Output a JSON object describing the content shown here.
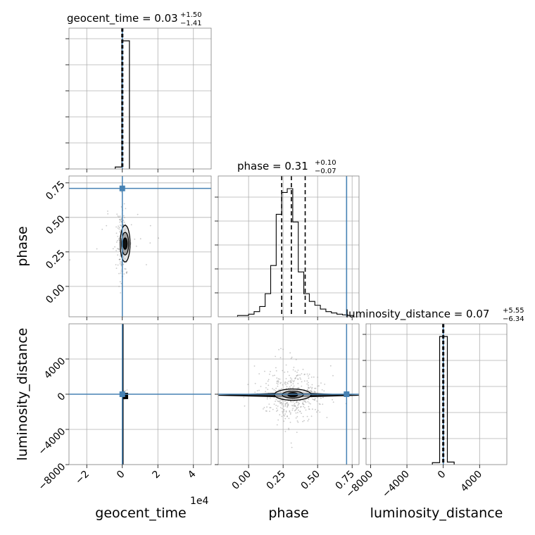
{
  "chart_data": {
    "type": "corner",
    "parameters": [
      "geocent_time",
      "phase",
      "luminosity_distance"
    ],
    "truth_color": "#4682b4",
    "truths": {
      "geocent_time": 0,
      "phase": 0.71,
      "luminosity_distance": 0
    },
    "panels": {
      "geocent_time_hist": {
        "title_main": "geocent_time = 0.03",
        "title_sup": "+1.50",
        "title_sub": "−1.41",
        "xlim": [
          -30000,
          50000
        ],
        "bins": [
          {
            "x0": -4000,
            "x1": -200,
            "h": 0.015
          },
          {
            "x0": -200,
            "x1": 4000,
            "h": 1.0
          }
        ],
        "quantile_lines": [
          -150,
          0,
          150
        ],
        "median": 0
      },
      "phase_hist": {
        "title_main": "phase = 0.31",
        "title_sup": "+0.10",
        "title_sub": "−0.07",
        "xlim": [
          -0.22,
          0.8
        ],
        "bin_edges": [
          -0.08,
          -0.04,
          0.0,
          0.04,
          0.08,
          0.12,
          0.16,
          0.2,
          0.24,
          0.28,
          0.32,
          0.36,
          0.4,
          0.44,
          0.48,
          0.52,
          0.56,
          0.6,
          0.64,
          0.68,
          0.72,
          0.76
        ],
        "counts": [
          0.01,
          0.01,
          0.02,
          0.04,
          0.08,
          0.18,
          0.4,
          0.8,
          0.97,
          1.0,
          0.74,
          0.35,
          0.18,
          0.12,
          0.09,
          0.06,
          0.04,
          0.03,
          0.02,
          0.015,
          0.01
        ],
        "quantile_lines": [
          0.24,
          0.31,
          0.41
        ]
      },
      "luminosity_distance_hist": {
        "title_main": "luminosity_distance = 0.07",
        "title_sup": "+5.55",
        "title_sub": "−6.34",
        "xlim": [
          -8500,
          7000
        ],
        "bins": [
          {
            "x0": -1200,
            "x1": -400,
            "h": 0.015
          },
          {
            "x0": -400,
            "x1": 0,
            "h": 1.0
          },
          {
            "x0": 0,
            "x1": 450,
            "h": 1.0
          },
          {
            "x0": 450,
            "x1": 1200,
            "h": 0.02
          }
        ],
        "quantile_lines": [
          -6,
          0,
          6
        ]
      },
      "phase_vs_geocent_time": {
        "xlim": [
          -30000,
          50000
        ],
        "ylim": [
          -0.22,
          0.8
        ],
        "contour_center": [
          800,
          0.31
        ]
      },
      "luminosity_distance_vs_geocent_time": {
        "xlim": [
          -30000,
          50000
        ],
        "ylim": [
          -8000,
          8000
        ],
        "contour_center": [
          500,
          0
        ]
      },
      "luminosity_distance_vs_phase": {
        "xlim": [
          -0.22,
          0.8
        ],
        "ylim": [
          -8000,
          8000
        ],
        "contour_center": [
          0.32,
          -50
        ]
      }
    },
    "axes": {
      "geocent_time": {
        "label": "geocent_time",
        "ticks": [
          -20000,
          0,
          20000,
          40000
        ],
        "tick_labels": [
          "−2",
          "0",
          "2",
          "4"
        ],
        "offset_text": "1e4"
      },
      "phase": {
        "label": "phase",
        "ticks": [
          0.0,
          0.25,
          0.5,
          0.75
        ],
        "tick_labels": [
          "0.00",
          "0.25",
          "0.50",
          "0.75"
        ]
      },
      "luminosity_distance": {
        "label": "luminosity_distance",
        "ticks": [
          -8000,
          -4000,
          0,
          4000
        ],
        "tick_labels": [
          "−8000",
          "−4000",
          "0",
          "4000"
        ]
      }
    },
    "grid": true
  }
}
